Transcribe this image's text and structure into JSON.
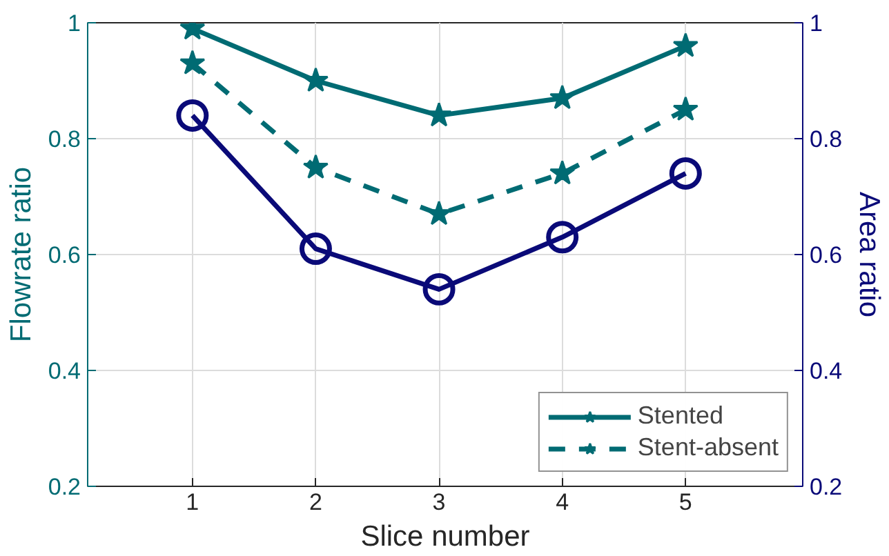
{
  "chart_data": {
    "type": "line",
    "xlabel": "Slice number",
    "ylabel": "Flowrate ratio",
    "y2label": "Area ratio",
    "x": [
      1,
      2,
      3,
      4,
      5
    ],
    "xlim": [
      0.15,
      5.95
    ],
    "xticks": [
      1,
      2,
      3,
      4,
      5
    ],
    "ylim": [
      0.2,
      1
    ],
    "yticks": [
      0.2,
      0.4,
      0.6,
      0.8,
      1
    ],
    "y2lim": [
      0.2,
      1
    ],
    "y2ticks": [
      0.2,
      0.4,
      0.6,
      0.8,
      1
    ],
    "grid": true,
    "legend": "bottom right",
    "series": [
      {
        "name": "Stented",
        "color": "#006b73",
        "values": [
          0.99,
          0.9,
          0.84,
          0.87,
          0.96
        ],
        "marker": "star",
        "line_style": "solid"
      },
      {
        "name": "Stent-absent",
        "color": "#006b73",
        "values": [
          0.93,
          0.75,
          0.67,
          0.74,
          0.85
        ],
        "marker": "star",
        "line_style": "dashed"
      },
      {
        "color": "#0a0a78",
        "values": [
          0.84,
          0.61,
          0.54,
          0.63,
          0.74
        ],
        "marker": "circle",
        "line_style": "solid",
        "axis": "y2"
      }
    ]
  }
}
